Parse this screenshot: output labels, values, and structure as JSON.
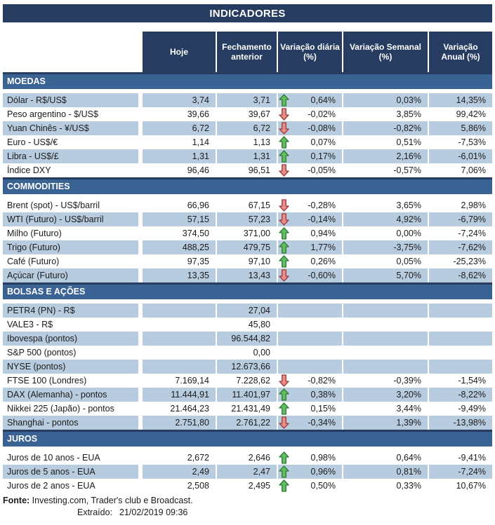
{
  "title": "INDICADORES",
  "columns": [
    "Hoje",
    "Fechamento anterior",
    "Variação diária (%)",
    "Variação Semanal (%)",
    "Variação Anual (%)"
  ],
  "sections": [
    {
      "name": "MOEDAS",
      "zebra_start": "light",
      "rows": [
        {
          "label": "Dólar - R$/US$",
          "hoje": "3,74",
          "fechamento": "3,71",
          "arrow": "up",
          "var_diaria": "0,64%",
          "var_semanal": "0,03%",
          "var_anual": "14,35%"
        },
        {
          "label": "Peso argentino - $/US$",
          "hoje": "39,66",
          "fechamento": "39,67",
          "arrow": "down",
          "var_diaria": "-0,02%",
          "var_semanal": "3,85%",
          "var_anual": "99,42%"
        },
        {
          "label": "Yuan Chinês - ¥/US$",
          "hoje": "6,72",
          "fechamento": "6,72",
          "arrow": "down",
          "var_diaria": "-0,08%",
          "var_semanal": "-0,82%",
          "var_anual": "5,86%"
        },
        {
          "label": "Euro - US$/€",
          "hoje": "1,14",
          "fechamento": "1,13",
          "arrow": "up",
          "var_diaria": "0,07%",
          "var_semanal": "0,51%",
          "var_anual": "-7,53%"
        },
        {
          "label": "Libra - US$/£",
          "hoje": "1,31",
          "fechamento": "1,31",
          "arrow": "up",
          "var_diaria": "0,17%",
          "var_semanal": "2,16%",
          "var_anual": "-6,01%"
        },
        {
          "label": "Índice DXY",
          "hoje": "96,46",
          "fechamento": "96,51",
          "arrow": "down",
          "var_diaria": "-0,05%",
          "var_semanal": "-0,57%",
          "var_anual": "7,06%"
        }
      ]
    },
    {
      "name": "COMMODITIES",
      "zebra_start": "white",
      "rows": [
        {
          "label": "Brent (spot) - US$/barril",
          "hoje": "66,96",
          "fechamento": "67,15",
          "arrow": "down",
          "var_diaria": "-0,28%",
          "var_semanal": "3,65%",
          "var_anual": "2,98%"
        },
        {
          "label": "WTI (Futuro) - US$/barril",
          "hoje": "57,15",
          "fechamento": "57,23",
          "arrow": "down",
          "var_diaria": "-0,14%",
          "var_semanal": "4,92%",
          "var_anual": "-6,79%"
        },
        {
          "label": "Milho (Futuro)",
          "hoje": "374,50",
          "fechamento": "371,00",
          "arrow": "up",
          "var_diaria": "0,94%",
          "var_semanal": "0,00%",
          "var_anual": "-7,24%"
        },
        {
          "label": "Trigo (Futuro)",
          "hoje": "488,25",
          "fechamento": "479,75",
          "arrow": "up",
          "var_diaria": "1,77%",
          "var_semanal": "-3,75%",
          "var_anual": "-7,62%"
        },
        {
          "label": "Café (Futuro)",
          "hoje": "97,35",
          "fechamento": "97,10",
          "arrow": "up",
          "var_diaria": "0,26%",
          "var_semanal": "0,05%",
          "var_anual": "-25,23%"
        },
        {
          "label": "Açúcar (Futuro)",
          "hoje": "13,35",
          "fechamento": "13,43",
          "arrow": "down",
          "var_diaria": "-0,60%",
          "var_semanal": "5,70%",
          "var_anual": "-8,62%"
        }
      ]
    },
    {
      "name": "BOLSAS E AÇÕES",
      "zebra_start": "light",
      "rows": [
        {
          "label": "PETR4 (PN) - R$",
          "hoje": "",
          "fechamento": "27,04",
          "arrow": null,
          "var_diaria": "",
          "var_semanal": "",
          "var_anual": ""
        },
        {
          "label": "VALE3 - R$",
          "hoje": "",
          "fechamento": "45,80",
          "arrow": null,
          "var_diaria": "",
          "var_semanal": "",
          "var_anual": ""
        },
        {
          "label": "Ibovespa (pontos)",
          "hoje": "",
          "fechamento": "96.544,82",
          "arrow": null,
          "var_diaria": "",
          "var_semanal": "",
          "var_anual": ""
        },
        {
          "label": "S&P 500 (pontos)",
          "hoje": "",
          "fechamento": "0,00",
          "arrow": null,
          "var_diaria": "",
          "var_semanal": "",
          "var_anual": ""
        },
        {
          "label": "NYSE (pontos)",
          "hoje": "",
          "fechamento": "12.673,66",
          "arrow": null,
          "var_diaria": "",
          "var_semanal": "",
          "var_anual": ""
        },
        {
          "label": "FTSE 100 (Londres)",
          "hoje": "7.169,14",
          "fechamento": "7.228,62",
          "arrow": "down",
          "var_diaria": "-0,82%",
          "var_semanal": "-0,39%",
          "var_anual": "-1,54%"
        },
        {
          "label": "DAX (Alemanha) - pontos",
          "hoje": "11.444,91",
          "fechamento": "11.401,97",
          "arrow": "up",
          "var_diaria": "0,38%",
          "var_semanal": "3,20%",
          "var_anual": "-8,22%"
        },
        {
          "label": "Nikkei 225 (Japão) - pontos",
          "hoje": "21.464,23",
          "fechamento": "21.431,49",
          "arrow": "up",
          "var_diaria": "0,15%",
          "var_semanal": "3,44%",
          "var_anual": "-9,49%"
        },
        {
          "label": "Shanghai - pontos",
          "hoje": "2.751,80",
          "fechamento": "2.761,22",
          "arrow": "down",
          "var_diaria": "-0,34%",
          "var_semanal": "1,39%",
          "var_anual": "-13,98%"
        }
      ]
    },
    {
      "name": "JUROS",
      "zebra_start": "white",
      "rows": [
        {
          "label": "Juros de 10 anos - EUA",
          "hoje": "2,672",
          "fechamento": "2,646",
          "arrow": "up",
          "var_diaria": "0,98%",
          "var_semanal": "0,64%",
          "var_anual": "-9,41%"
        },
        {
          "label": "Juros de 5 anos - EUA",
          "hoje": "2,49",
          "fechamento": "2,47",
          "arrow": "up",
          "var_diaria": "0,96%",
          "var_semanal": "0,81%",
          "var_anual": "-7,24%"
        },
        {
          "label": "Juros de 2 anos - EUA",
          "hoje": "2,508",
          "fechamento": "2,495",
          "arrow": "up",
          "var_diaria": "0,50%",
          "var_semanal": "0,33%",
          "var_anual": "10,67%"
        }
      ]
    }
  ],
  "footer": {
    "fonte_label": "Fonte:",
    "fonte_text": " Investing.com, Trader's club e Broadcast.",
    "extraido_label": "Extraído:",
    "extraido_value": "21/02/2019 09:36"
  },
  "icons": {
    "up": "up-arrow-icon",
    "down": "down-arrow-icon"
  },
  "colors": {
    "navy": "#263c60",
    "band_blue": "#3a6293",
    "row_light": "#b8cce0",
    "row_white": "#ffffff",
    "text": "#1b1b1b",
    "header_text": "#ffffff",
    "arrow_up_fill": "#63be63",
    "arrow_up_stroke": "#2d7c34",
    "arrow_down_fill": "#e88e8b",
    "arrow_down_stroke": "#9e3b3b"
  }
}
